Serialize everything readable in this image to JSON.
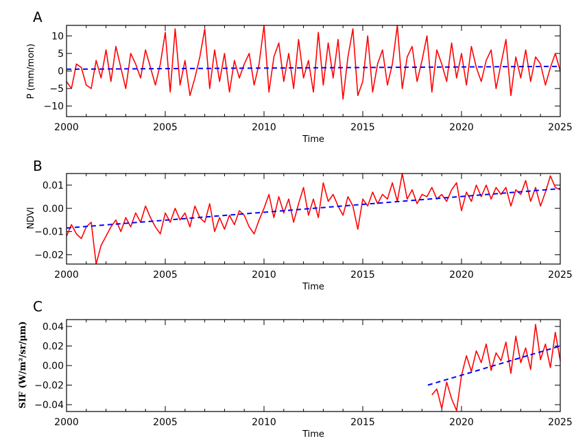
{
  "chart_data": [
    {
      "panel_letter": "A",
      "type": "line",
      "xlabel": "Time",
      "ylabel": "P (mm/mon)",
      "xlim": [
        2000,
        2025
      ],
      "ylim": [
        -13,
        13
      ],
      "xticks": [
        2000,
        2005,
        2010,
        2015,
        2020,
        2025
      ],
      "yticks": [
        -10,
        -5,
        0,
        5,
        10
      ],
      "ytick_labels": [
        "−10",
        "−5",
        "0",
        "5",
        "10"
      ],
      "grid": false,
      "series": [
        {
          "style": "solid",
          "color": "#ff0000",
          "x": [
            2000.0,
            2000.25,
            2000.5,
            2000.75,
            2001.0,
            2001.25,
            2001.5,
            2001.75,
            2002.0,
            2002.25,
            2002.5,
            2002.75,
            2003.0,
            2003.25,
            2003.5,
            2003.75,
            2004.0,
            2004.25,
            2004.5,
            2004.75,
            2005.0,
            2005.25,
            2005.5,
            2005.75,
            2006.0,
            2006.25,
            2006.5,
            2006.75,
            2007.0,
            2007.25,
            2007.5,
            2007.75,
            2008.0,
            2008.25,
            2008.5,
            2008.75,
            2009.0,
            2009.25,
            2009.5,
            2009.75,
            2010.0,
            2010.25,
            2010.5,
            2010.75,
            2011.0,
            2011.25,
            2011.5,
            2011.75,
            2012.0,
            2012.25,
            2012.5,
            2012.75,
            2013.0,
            2013.25,
            2013.5,
            2013.75,
            2014.0,
            2014.25,
            2014.5,
            2014.75,
            2015.0,
            2015.25,
            2015.5,
            2015.75,
            2016.0,
            2016.25,
            2016.5,
            2016.75,
            2017.0,
            2017.25,
            2017.5,
            2017.75,
            2018.0,
            2018.25,
            2018.5,
            2018.75,
            2019.0,
            2019.25,
            2019.5,
            2019.75,
            2020.0,
            2020.25,
            2020.5,
            2020.75,
            2021.0,
            2021.25,
            2021.5,
            2021.75,
            2022.0,
            2022.25,
            2022.5,
            2022.75,
            2023.0,
            2023.25,
            2023.5,
            2023.75,
            2024.0,
            2024.25,
            2024.5,
            2024.75,
            2025.0
          ],
          "y": [
            -3,
            -5,
            2,
            1,
            -4,
            -5,
            3,
            -2,
            6,
            -3,
            7,
            1,
            -5,
            5,
            2,
            -2,
            6,
            1,
            -4,
            2,
            11,
            -6,
            12,
            -4,
            3,
            -7,
            -2,
            4,
            12,
            -5,
            6,
            -3,
            5,
            -6,
            3,
            -2,
            2,
            5,
            -4,
            2,
            13,
            -6,
            4,
            8,
            -3,
            5,
            -5,
            9,
            -2,
            3,
            -6,
            11,
            -4,
            8,
            -2,
            9,
            -8,
            4,
            12,
            -7,
            -3,
            10,
            -6,
            2,
            6,
            -4,
            2,
            13,
            -5,
            4,
            7,
            -3,
            3,
            10,
            -6,
            6,
            2,
            -3,
            8,
            -2,
            5,
            -4,
            7,
            1,
            -3,
            3,
            6,
            -5,
            2,
            9,
            -7,
            4,
            -2,
            6,
            -3,
            4,
            2,
            -4,
            1,
            5,
            0
          ]
        },
        {
          "style": "dashed",
          "color": "#0000ff",
          "x": [
            2000,
            2025
          ],
          "y": [
            0.5,
            1.3
          ]
        }
      ]
    },
    {
      "panel_letter": "B",
      "type": "line",
      "xlabel": "Time",
      "ylabel": "NDVI",
      "xlim": [
        2000,
        2025
      ],
      "ylim": [
        -0.024,
        0.015
      ],
      "xticks": [
        2000,
        2005,
        2010,
        2015,
        2020,
        2025
      ],
      "yticks": [
        -0.02,
        -0.01,
        0.0,
        0.01
      ],
      "ytick_labels": [
        "−0.02",
        "−0.01",
        "0.00",
        "0.01"
      ],
      "grid": false,
      "series": [
        {
          "style": "solid",
          "color": "#ff0000",
          "x": [
            2000.0,
            2000.25,
            2000.5,
            2000.75,
            2001.0,
            2001.25,
            2001.5,
            2001.75,
            2002.0,
            2002.25,
            2002.5,
            2002.75,
            2003.0,
            2003.25,
            2003.5,
            2003.75,
            2004.0,
            2004.25,
            2004.5,
            2004.75,
            2005.0,
            2005.25,
            2005.5,
            2005.75,
            2006.0,
            2006.25,
            2006.5,
            2006.75,
            2007.0,
            2007.25,
            2007.5,
            2007.75,
            2008.0,
            2008.25,
            2008.5,
            2008.75,
            2009.0,
            2009.25,
            2009.5,
            2009.75,
            2010.0,
            2010.25,
            2010.5,
            2010.75,
            2011.0,
            2011.25,
            2011.5,
            2011.75,
            2012.0,
            2012.25,
            2012.5,
            2012.75,
            2013.0,
            2013.25,
            2013.5,
            2013.75,
            2014.0,
            2014.25,
            2014.5,
            2014.75,
            2015.0,
            2015.25,
            2015.5,
            2015.75,
            2016.0,
            2016.25,
            2016.5,
            2016.75,
            2017.0,
            2017.25,
            2017.5,
            2017.75,
            2018.0,
            2018.25,
            2018.5,
            2018.75,
            2019.0,
            2019.25,
            2019.5,
            2019.75,
            2020.0,
            2020.25,
            2020.5,
            2020.75,
            2021.0,
            2021.25,
            2021.5,
            2021.75,
            2022.0,
            2022.25,
            2022.5,
            2022.75,
            2023.0,
            2023.25,
            2023.5,
            2023.75,
            2024.0,
            2024.25,
            2024.5,
            2024.75,
            2025.0
          ],
          "y": [
            -0.012,
            -0.007,
            -0.011,
            -0.013,
            -0.008,
            -0.006,
            -0.024,
            -0.016,
            -0.012,
            -0.008,
            -0.005,
            -0.01,
            -0.004,
            -0.008,
            -0.002,
            -0.006,
            0.001,
            -0.004,
            -0.008,
            -0.011,
            -0.002,
            -0.006,
            0.0,
            -0.005,
            -0.002,
            -0.008,
            0.001,
            -0.004,
            -0.006,
            0.002,
            -0.01,
            -0.004,
            -0.009,
            -0.003,
            -0.007,
            -0.001,
            -0.003,
            -0.008,
            -0.011,
            -0.005,
            0.0,
            0.006,
            -0.004,
            0.005,
            -0.002,
            0.004,
            -0.006,
            0.002,
            0.009,
            -0.003,
            0.004,
            -0.004,
            0.011,
            0.003,
            0.006,
            0.001,
            -0.003,
            0.005,
            0.001,
            -0.009,
            0.004,
            0.001,
            0.007,
            0.002,
            0.006,
            0.004,
            0.011,
            0.003,
            0.015,
            0.004,
            0.008,
            0.002,
            0.006,
            0.005,
            0.009,
            0.004,
            0.006,
            0.003,
            0.008,
            0.011,
            -0.001,
            0.007,
            0.003,
            0.01,
            0.005,
            0.01,
            0.004,
            0.009,
            0.006,
            0.009,
            0.001,
            0.008,
            0.006,
            0.012,
            0.003,
            0.009,
            0.001,
            0.007,
            0.014,
            0.009,
            0.008
          ]
        },
        {
          "style": "dashed",
          "color": "#0000ff",
          "x": [
            2000,
            2025
          ],
          "y": [
            -0.0085,
            0.0085
          ]
        }
      ]
    },
    {
      "panel_letter": "C",
      "type": "line",
      "xlabel": "Time",
      "ylabel": "SIF (W/m²/sr/μm)",
      "xlim": [
        2000,
        2025
      ],
      "ylim": [
        -0.047,
        0.047
      ],
      "xticks": [
        2000,
        2005,
        2010,
        2015,
        2020,
        2025
      ],
      "yticks": [
        -0.04,
        -0.02,
        0.0,
        0.02,
        0.04
      ],
      "ytick_labels": [
        "−0.04",
        "−0.02",
        "0.00",
        "0.02",
        "0.04"
      ],
      "grid": false,
      "series": [
        {
          "style": "solid",
          "color": "#ff0000",
          "x": [
            2018.5,
            2018.75,
            2019.0,
            2019.25,
            2019.5,
            2019.75,
            2020.0,
            2020.25,
            2020.5,
            2020.75,
            2021.0,
            2021.25,
            2021.5,
            2021.75,
            2022.0,
            2022.25,
            2022.5,
            2022.75,
            2023.0,
            2023.25,
            2023.5,
            2023.75,
            2024.0,
            2024.25,
            2024.5,
            2024.75,
            2025.0
          ],
          "y": [
            -0.03,
            -0.024,
            -0.044,
            -0.017,
            -0.034,
            -0.046,
            -0.01,
            0.01,
            -0.006,
            0.015,
            0.003,
            0.022,
            -0.005,
            0.013,
            0.005,
            0.024,
            -0.008,
            0.03,
            0.003,
            0.018,
            -0.004,
            0.042,
            0.006,
            0.022,
            -0.002,
            0.034,
            0.005
          ]
        },
        {
          "style": "dashed",
          "color": "#0000ff",
          "x": [
            2018.3,
            2025
          ],
          "y": [
            -0.02,
            0.02
          ]
        }
      ]
    }
  ]
}
